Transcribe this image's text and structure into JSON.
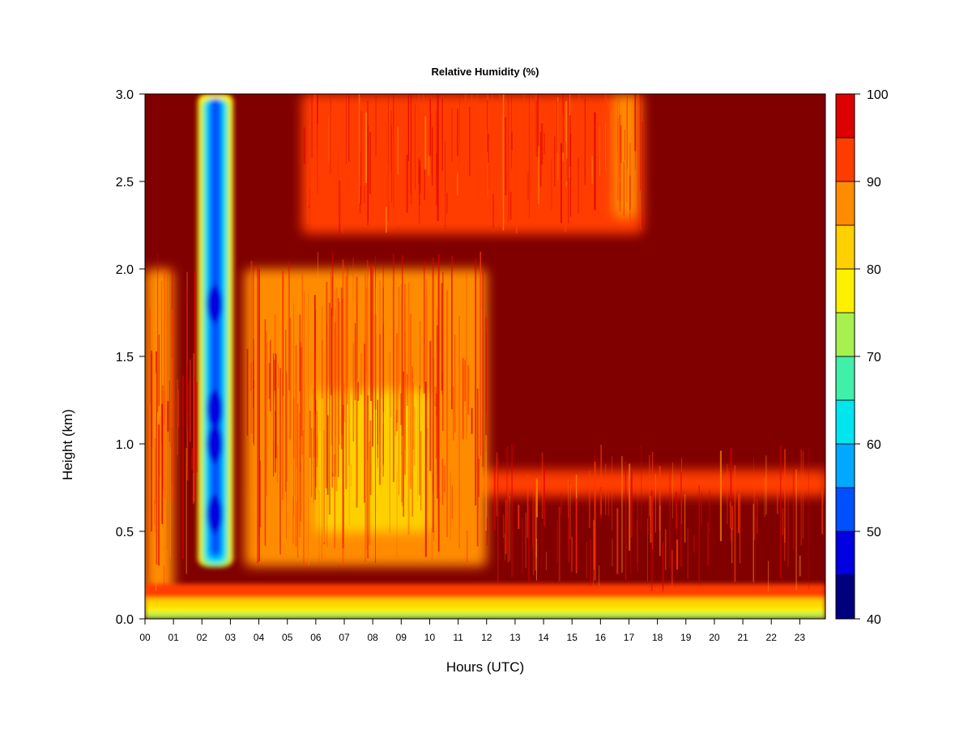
{
  "chart_data": {
    "type": "heatmap",
    "title": "Relative Humidity (%)",
    "xlabel": "Hours (UTC)",
    "ylabel": "Height (km)",
    "x_ticks": [
      "00",
      "01",
      "02",
      "03",
      "04",
      "05",
      "06",
      "07",
      "08",
      "09",
      "10",
      "11",
      "12",
      "13",
      "14",
      "15",
      "16",
      "17",
      "18",
      "19",
      "20",
      "21",
      "22",
      "23"
    ],
    "y_ticks": [
      "0.0",
      "0.5",
      "1.0",
      "1.5",
      "2.0",
      "2.5",
      "3.0"
    ],
    "xlim": [
      0,
      23.9
    ],
    "ylim": [
      0,
      3.0
    ],
    "colorbar": {
      "ticks": [
        "40",
        "50",
        "60",
        "70",
        "80",
        "90",
        "100"
      ],
      "range": [
        40,
        100
      ],
      "levels": [
        40,
        45,
        50,
        55,
        60,
        65,
        70,
        75,
        80,
        85,
        90,
        95,
        100
      ],
      "colors": [
        "#00007F",
        "#0000E0",
        "#0050FF",
        "#00A8FF",
        "#00E5EE",
        "#40F0A8",
        "#A6F050",
        "#FFF000",
        "#FFD000",
        "#FF8C00",
        "#FF3C00",
        "#DD0000",
        "#800000"
      ]
    },
    "background_value": 100,
    "features": [
      {
        "hours": [
          0,
          1
        ],
        "heights": [
          0.05,
          2.0
        ],
        "value": 88
      },
      {
        "hours": [
          1.85,
          3.1
        ],
        "heights": [
          0.3,
          3.0
        ],
        "value": 55
      },
      {
        "hours": [
          2.2,
          2.7
        ],
        "heights": [
          0.5,
          2.0
        ],
        "value": 45
      },
      {
        "hours": [
          3.5,
          12
        ],
        "heights": [
          0.3,
          2.0
        ],
        "value": 88
      },
      {
        "hours": [
          6,
          10
        ],
        "heights": [
          0.5,
          1.3
        ],
        "value": 84
      },
      {
        "hours": [
          5.5,
          17.5
        ],
        "heights": [
          2.2,
          3.0
        ],
        "value": 90
      },
      {
        "hours": [
          16.5,
          17.3
        ],
        "heights": [
          2.3,
          3.0
        ],
        "value": 86
      },
      {
        "hours": [
          12,
          24
        ],
        "heights": [
          0.7,
          0.85
        ],
        "value": 91
      },
      {
        "hours": [
          0,
          24
        ],
        "heights": [
          0.0,
          0.1
        ],
        "value": 72
      }
    ]
  }
}
